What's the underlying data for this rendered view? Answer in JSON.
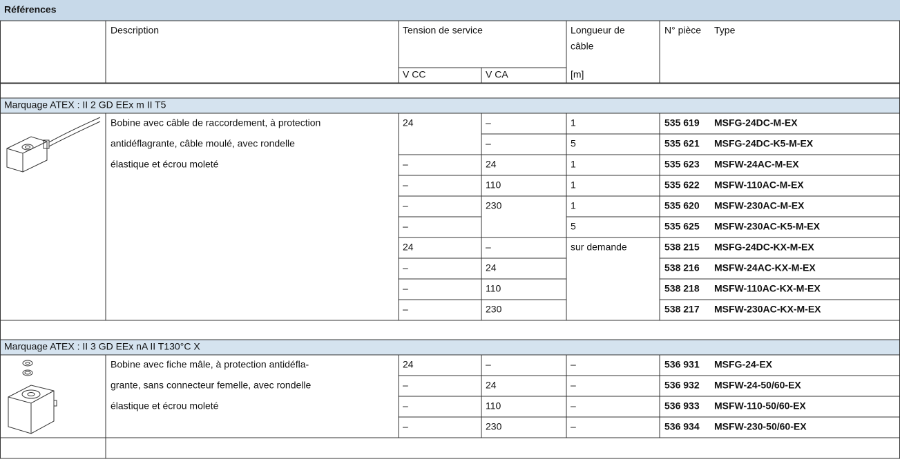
{
  "title": "Références",
  "header": {
    "description": "Description",
    "tension": "Tension de service",
    "vcc": "V CC",
    "vca": "V CA",
    "length_lines": [
      "Longueur de",
      "câble"
    ],
    "length_unit": "[m]",
    "part_no": "N° pièce",
    "type": "Type"
  },
  "sections": [
    {
      "label": "Marquage ATEX : II 2 GD EEx m II T5",
      "description_lines": [
        "Bobine avec câble de raccordement, à protection",
        "antidéflagrante, câble moulé, avec rondelle",
        "élastique et écrou moleté"
      ],
      "rows": [
        [
          "24",
          "–",
          "1",
          "535 619",
          "MSFG-24DC-M-EX"
        ],
        [
          null,
          "–",
          "5",
          "535 621",
          "MSFG-24DC-K5-M-EX"
        ],
        [
          "–",
          "24",
          "1",
          "535 623",
          "MSFW-24AC-M-EX"
        ],
        [
          "–",
          "110",
          "1",
          "535 622",
          "MSFW-110AC-M-EX"
        ],
        [
          "–",
          "230",
          "1",
          "535 620",
          "MSFW-230AC-M-EX"
        ],
        [
          "–",
          null,
          "5",
          "535 625",
          "MSFW-230AC-K5-M-EX"
        ],
        [
          "24",
          "–",
          "sur demande",
          "538 215",
          "MSFG-24DC-KX-M-EX"
        ],
        [
          "–",
          "24",
          null,
          "538 216",
          "MSFW-24AC-KX-M-EX"
        ],
        [
          "–",
          "110",
          null,
          "538 218",
          "MSFW-110AC-KX-M-EX"
        ],
        [
          "–",
          "230",
          null,
          "538 217",
          "MSFW-230AC-KX-M-EX"
        ]
      ]
    },
    {
      "label": "Marquage ATEX : II 3 GD EEx nA II T130°C X",
      "description_lines": [
        "Bobine avec fiche mâle, à protection antidéfla-",
        "grante, sans connecteur femelle, avec rondelle",
        "élastique et écrou moleté"
      ],
      "rows": [
        [
          "24",
          "–",
          "–",
          "536 931",
          "MSFG-24-EX"
        ],
        [
          "–",
          "24",
          "–",
          "536 932",
          "MSFW-24-50/60-EX"
        ],
        [
          "–",
          "110",
          "–",
          "536 933",
          "MSFW-110-50/60-EX"
        ],
        [
          "–",
          "230",
          "–",
          "536 934",
          "MSFW-230-50/60-EX"
        ]
      ]
    }
  ]
}
